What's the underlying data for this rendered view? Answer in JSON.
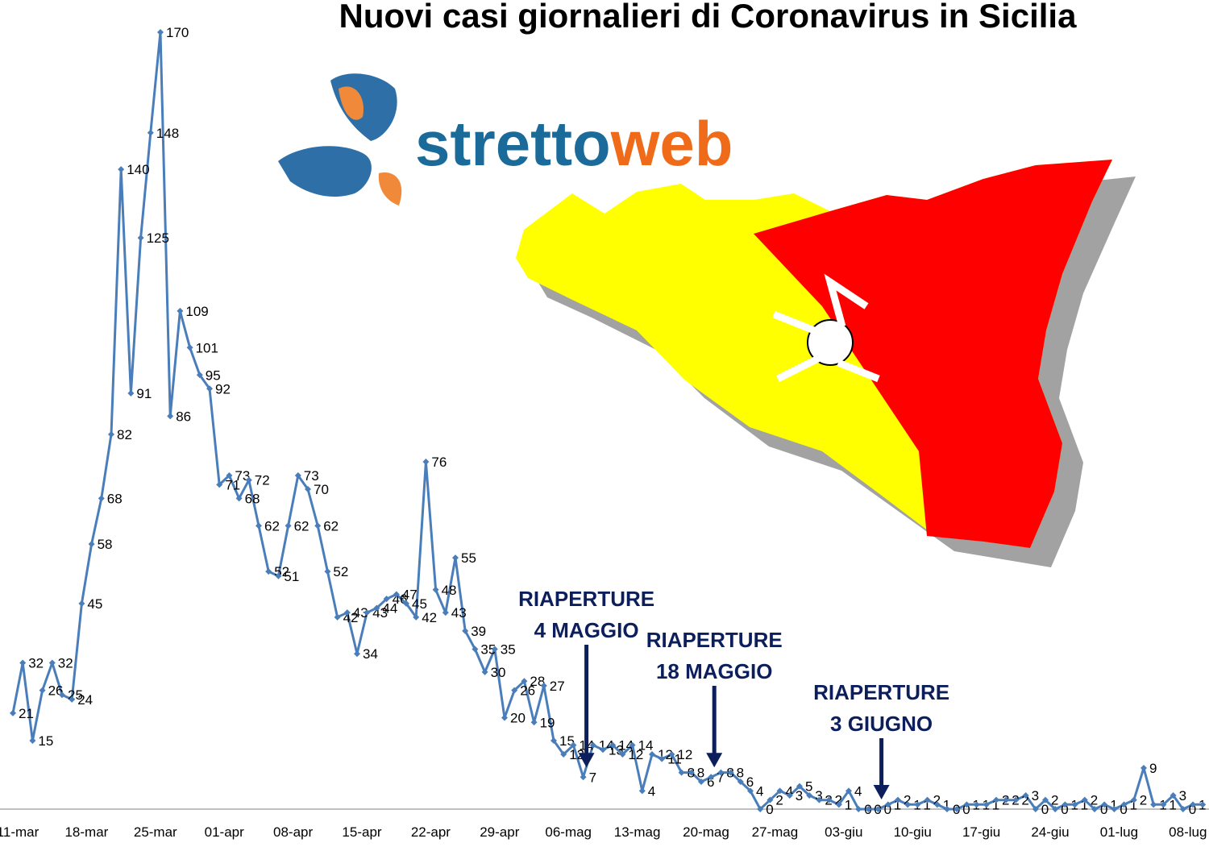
{
  "chart_data": {
    "type": "line",
    "title": "Nuovi casi giornalieri di Coronavirus in Sicilia",
    "logo": [
      "stretto",
      "web"
    ],
    "color": "#4a7ebb",
    "ylim": [
      0,
      170
    ],
    "categories": [
      "11-mar",
      null,
      null,
      null,
      null,
      null,
      null,
      "18-mar",
      null,
      null,
      null,
      null,
      null,
      null,
      "25-mar",
      null,
      null,
      null,
      null,
      null,
      null,
      "01-apr",
      null,
      null,
      null,
      null,
      null,
      null,
      "08-apr",
      null,
      null,
      null,
      null,
      null,
      null,
      "15-apr",
      null,
      null,
      null,
      null,
      null,
      null,
      "22-apr",
      null,
      null,
      null,
      null,
      null,
      null,
      "29-apr",
      null,
      null,
      null,
      null,
      null,
      null,
      "06-mag",
      null,
      null,
      null,
      null,
      null,
      null,
      "13-mag",
      null,
      null,
      null,
      null,
      null,
      null,
      "20-mag",
      null,
      null,
      null,
      null,
      null,
      null,
      "27-mag",
      null,
      null,
      null,
      null,
      null,
      null,
      "03-giu",
      null,
      null,
      null,
      null,
      null,
      null,
      "10-giu",
      null,
      null,
      null,
      null,
      null,
      null,
      "17-giu",
      null,
      null,
      null,
      null,
      null,
      null,
      "24-giu",
      null,
      null,
      null,
      null,
      null,
      null,
      "01-lug",
      null,
      null,
      null,
      null,
      null,
      null,
      "08-lug",
      null,
      null
    ],
    "values": [
      21,
      32,
      15,
      26,
      32,
      25,
      24,
      45,
      58,
      68,
      82,
      140,
      91,
      125,
      148,
      170,
      86,
      109,
      101,
      95,
      92,
      71,
      73,
      68,
      72,
      62,
      52,
      51,
      62,
      73,
      70,
      62,
      52,
      42,
      43,
      34,
      43,
      44,
      46,
      47,
      45,
      42,
      76,
      48,
      43,
      55,
      39,
      35,
      30,
      35,
      20,
      26,
      28,
      19,
      27,
      15,
      12,
      14,
      7,
      14,
      13,
      14,
      12,
      14,
      4,
      12,
      11,
      12,
      8,
      8,
      6,
      7,
      8,
      8,
      6,
      4,
      0,
      2,
      4,
      3,
      5,
      3,
      2,
      2,
      1,
      4,
      0,
      0,
      0,
      1,
      2,
      1,
      1,
      2,
      1,
      0,
      0,
      1,
      1,
      1,
      2,
      2,
      2,
      3,
      0,
      2,
      0,
      1,
      1,
      2,
      0,
      1,
      0,
      1,
      2,
      9,
      1,
      1,
      3,
      0,
      1,
      1
    ],
    "annotations": [
      {
        "lines": [
          "RIAPERTURE",
          "4 MAGGIO"
        ],
        "index": 58
      },
      {
        "lines": [
          "RIAPERTURE",
          "18 MAGGIO"
        ],
        "index": 71
      },
      {
        "lines": [
          "RIAPERTURE",
          "3 GIUGNO"
        ],
        "index": 88
      }
    ]
  }
}
